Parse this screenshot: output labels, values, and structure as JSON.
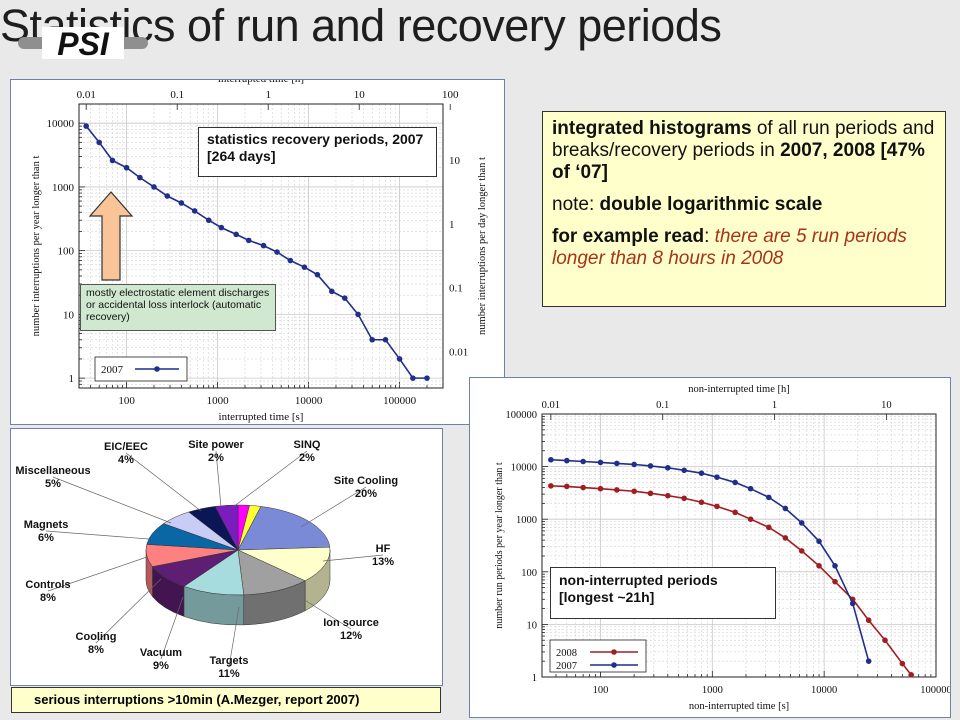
{
  "page": {
    "title": "Statistics of run and recovery periods",
    "logo_text": "PSI"
  },
  "note": {
    "p1_bold": "integrated histograms",
    "p1_rest": " of all run periods and breaks/recovery periods in ",
    "p1_years": "2007, 2008 [47% of ‘07]",
    "p2_lead": "note: ",
    "p2_bold": "double logarithmic scale",
    "p3_bold": "for example read",
    "p3_colon": ": ",
    "p3_red": "there are 5 run periods longer than 8 hours in 2008"
  },
  "recovery_box": {
    "label": "statistics recovery periods, 2007 [264 days]"
  },
  "recovery_green": {
    "label": "mostly electrostatic element discharges or accidental loss interlock (automatic recovery)"
  },
  "run_box": {
    "label": "non-interrupted periods [longest ~21h]"
  },
  "caption": {
    "text": "serious interruptions >10min   (A.Mezger, report 2007)"
  },
  "colors": {
    "series_2007": "#1f2f8a",
    "series_2008": "#a01e22",
    "arrow_fill": "#f9c497",
    "panel_border": "#6d82a6"
  },
  "chart_data": [
    {
      "type": "line",
      "name": "recovery-periods",
      "xlabel": "interrupted time [s]",
      "x2label": "interrupted time [h]",
      "ylabel": "number interruptions per year longer than t",
      "y2label": "number interruptions per day longer than t",
      "xscale": "log",
      "yscale": "log",
      "xlim": [
        30,
        300000
      ],
      "ylim": [
        0.7,
        20000
      ],
      "x_ticks": [
        {
          "v": 100,
          "l": "100"
        },
        {
          "v": 1000,
          "l": "1000"
        },
        {
          "v": 10000,
          "l": "10000"
        },
        {
          "v": 100000,
          "l": "100000"
        }
      ],
      "y_ticks": [
        {
          "v": 1,
          "l": "1"
        },
        {
          "v": 10,
          "l": "10"
        },
        {
          "v": 100,
          "l": "100"
        },
        {
          "v": 1000,
          "l": "1000"
        },
        {
          "v": 10000,
          "l": "10000"
        }
      ],
      "x2_ticks": [
        {
          "v": 0.01,
          "l": "0.01"
        },
        {
          "v": 0.1,
          "l": "0.1"
        },
        {
          "v": 1,
          "l": "1"
        },
        {
          "v": 10,
          "l": "10"
        },
        {
          "v": 100,
          "l": "100"
        }
      ],
      "y2_ticks": [
        {
          "v": 0.01,
          "l": "0.01"
        },
        {
          "v": 0.1,
          "l": "0.1"
        },
        {
          "v": 1,
          "l": "1"
        },
        {
          "v": 10,
          "l": "10"
        }
      ],
      "series": [
        {
          "name": "2007",
          "color": "#1f2f8a",
          "x": [
            36,
            50,
            70,
            100,
            140,
            200,
            280,
            400,
            560,
            800,
            1100,
            1600,
            2200,
            3200,
            4500,
            6300,
            9000,
            12500,
            18000,
            25000,
            35000,
            50000,
            70000,
            100000,
            140000,
            200000
          ],
          "y": [
            9000,
            5000,
            2600,
            2000,
            1400,
            1000,
            720,
            560,
            420,
            300,
            230,
            180,
            145,
            120,
            95,
            70,
            55,
            42,
            23,
            18,
            10,
            4,
            4,
            2,
            1,
            1
          ]
        }
      ]
    },
    {
      "type": "pie",
      "name": "serious-interruptions",
      "slices": [
        {
          "label": "Site power",
          "value": 2,
          "color": "#ff00ff"
        },
        {
          "label": "SINQ",
          "value": 2,
          "color": "#ffff33"
        },
        {
          "label": "Site Cooling",
          "value": 20,
          "color": "#7b8ad6"
        },
        {
          "label": "HF",
          "value": 13,
          "color": "#ffffcc"
        },
        {
          "label": "Ion source",
          "value": 12,
          "color": "#a0a0a0"
        },
        {
          "label": "Targets",
          "value": 11,
          "color": "#a6dcde"
        },
        {
          "label": "Vacuum",
          "value": 9,
          "color": "#5e1e72"
        },
        {
          "label": "Cooling",
          "value": 8,
          "color": "#ff8080"
        },
        {
          "label": "Controls",
          "value": 8,
          "color": "#0b66a6"
        },
        {
          "label": "Magnets",
          "value": 6,
          "color": "#c9ccf4"
        },
        {
          "label": "Miscellaneous",
          "value": 5,
          "color": "#0a1656"
        },
        {
          "label": "EIC/EEC",
          "value": 4,
          "color": "#7b1cbc"
        }
      ],
      "labels": [
        {
          "label": "EIC/EEC",
          "pct": "4%"
        },
        {
          "label": "Site power",
          "pct": "2%"
        },
        {
          "label": "SINQ",
          "pct": "2%"
        },
        {
          "label": "Site Cooling",
          "pct": "20%"
        },
        {
          "label": "HF",
          "pct": "13%"
        },
        {
          "label": "Ion source",
          "pct": "12%"
        },
        {
          "label": "Targets",
          "pct": "11%"
        },
        {
          "label": "Vacuum",
          "pct": "9%"
        },
        {
          "label": "Cooling",
          "pct": "8%"
        },
        {
          "label": "Controls",
          "pct": "8%"
        },
        {
          "label": "Magnets",
          "pct": "6%"
        },
        {
          "label": "Miscellaneous",
          "pct": "5%"
        }
      ]
    },
    {
      "type": "line",
      "name": "run-periods",
      "xlabel": "non-interrupted time [s]",
      "x2label": "non-interrupted time [h]",
      "ylabel": "number run periods per year longer than t",
      "xscale": "log",
      "yscale": "log",
      "xlim": [
        30,
        100000
      ],
      "ylim": [
        1,
        100000
      ],
      "x_ticks": [
        {
          "v": 100,
          "l": "100"
        },
        {
          "v": 1000,
          "l": "1000"
        },
        {
          "v": 10000,
          "l": "10000"
        },
        {
          "v": 100000,
          "l": "100000"
        }
      ],
      "y_ticks": [
        {
          "v": 1,
          "l": "1"
        },
        {
          "v": 10,
          "l": "10"
        },
        {
          "v": 100,
          "l": "100"
        },
        {
          "v": 1000,
          "l": "1000"
        },
        {
          "v": 10000,
          "l": "10000"
        },
        {
          "v": 100000,
          "l": "100000"
        }
      ],
      "x2_ticks": [
        {
          "v": 0.01,
          "l": "0.01"
        },
        {
          "v": 0.1,
          "l": "0.1"
        },
        {
          "v": 1,
          "l": "1"
        },
        {
          "v": 10,
          "l": "10"
        }
      ],
      "series": [
        {
          "name": "2008",
          "color": "#a01e22",
          "x": [
            36,
            50,
            70,
            100,
            140,
            200,
            280,
            400,
            560,
            800,
            1100,
            1600,
            2200,
            3200,
            4500,
            6300,
            9000,
            12500,
            18000,
            25000,
            35000,
            50000,
            60000
          ],
          "y": [
            4300,
            4200,
            4000,
            3800,
            3600,
            3400,
            3100,
            2800,
            2500,
            2100,
            1750,
            1350,
            1000,
            700,
            440,
            250,
            130,
            65,
            30,
            12,
            5,
            1.8,
            1.1
          ]
        },
        {
          "name": "2007",
          "color": "#1f2f8a",
          "x": [
            36,
            50,
            70,
            100,
            140,
            200,
            280,
            400,
            560,
            800,
            1100,
            1600,
            2200,
            3200,
            4500,
            6300,
            9000,
            12500,
            18000,
            25000
          ],
          "y": [
            13500,
            13000,
            12500,
            12000,
            11500,
            11000,
            10300,
            9500,
            8500,
            7500,
            6300,
            5000,
            3800,
            2600,
            1600,
            850,
            380,
            130,
            25,
            2
          ]
        }
      ]
    }
  ]
}
